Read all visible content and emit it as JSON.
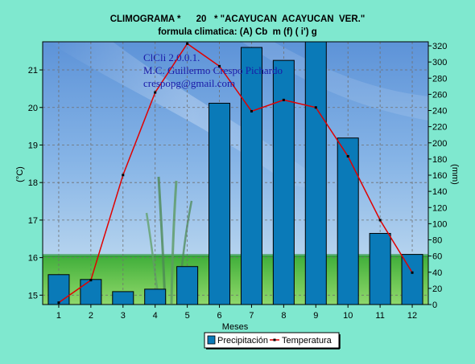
{
  "chart_data": {
    "type": "bar",
    "title": "CLIMOGRAMA *      20   * \"ACAYUCAN  ACAYUCAN  VER.\"",
    "subtitle": "formula climatica: (A) Cb  m (f) ( i') g",
    "categories": [
      "1",
      "2",
      "3",
      "4",
      "5",
      "6",
      "7",
      "8",
      "9",
      "10",
      "11",
      "12"
    ],
    "xlabel": "Meses",
    "ylabel_left": "(°C)",
    "ylabel_right": "(mm)",
    "ylim_left": [
      14.75,
      21.75
    ],
    "yticks_left": [
      15,
      16,
      17,
      18,
      19,
      20,
      21
    ],
    "ylim_right": [
      0,
      325
    ],
    "yticks_right": [
      0,
      20,
      40,
      60,
      80,
      100,
      120,
      140,
      160,
      180,
      200,
      220,
      240,
      260,
      280,
      300,
      320
    ],
    "grid": true,
    "legend_position": "bottom-center",
    "series": [
      {
        "name": "Precipitación",
        "type": "bar",
        "axis": "right",
        "color": "#0a7ab8",
        "values": [
          37,
          31,
          16,
          19,
          47,
          249,
          318,
          302,
          330,
          206,
          88,
          62
        ]
      },
      {
        "name": "Temperatura",
        "type": "line",
        "axis": "left",
        "color": "#e00000",
        "values": [
          14.8,
          15.4,
          18.2,
          20.4,
          21.7,
          21.1,
          19.9,
          20.2,
          20.0,
          18.7,
          17.0,
          15.6
        ]
      }
    ],
    "watermark": {
      "lines": [
        "ClCli 2.0.0.1.",
        "M.C. Guillermo Crespo Pichardo",
        "crespopg@gmail.com"
      ]
    }
  }
}
